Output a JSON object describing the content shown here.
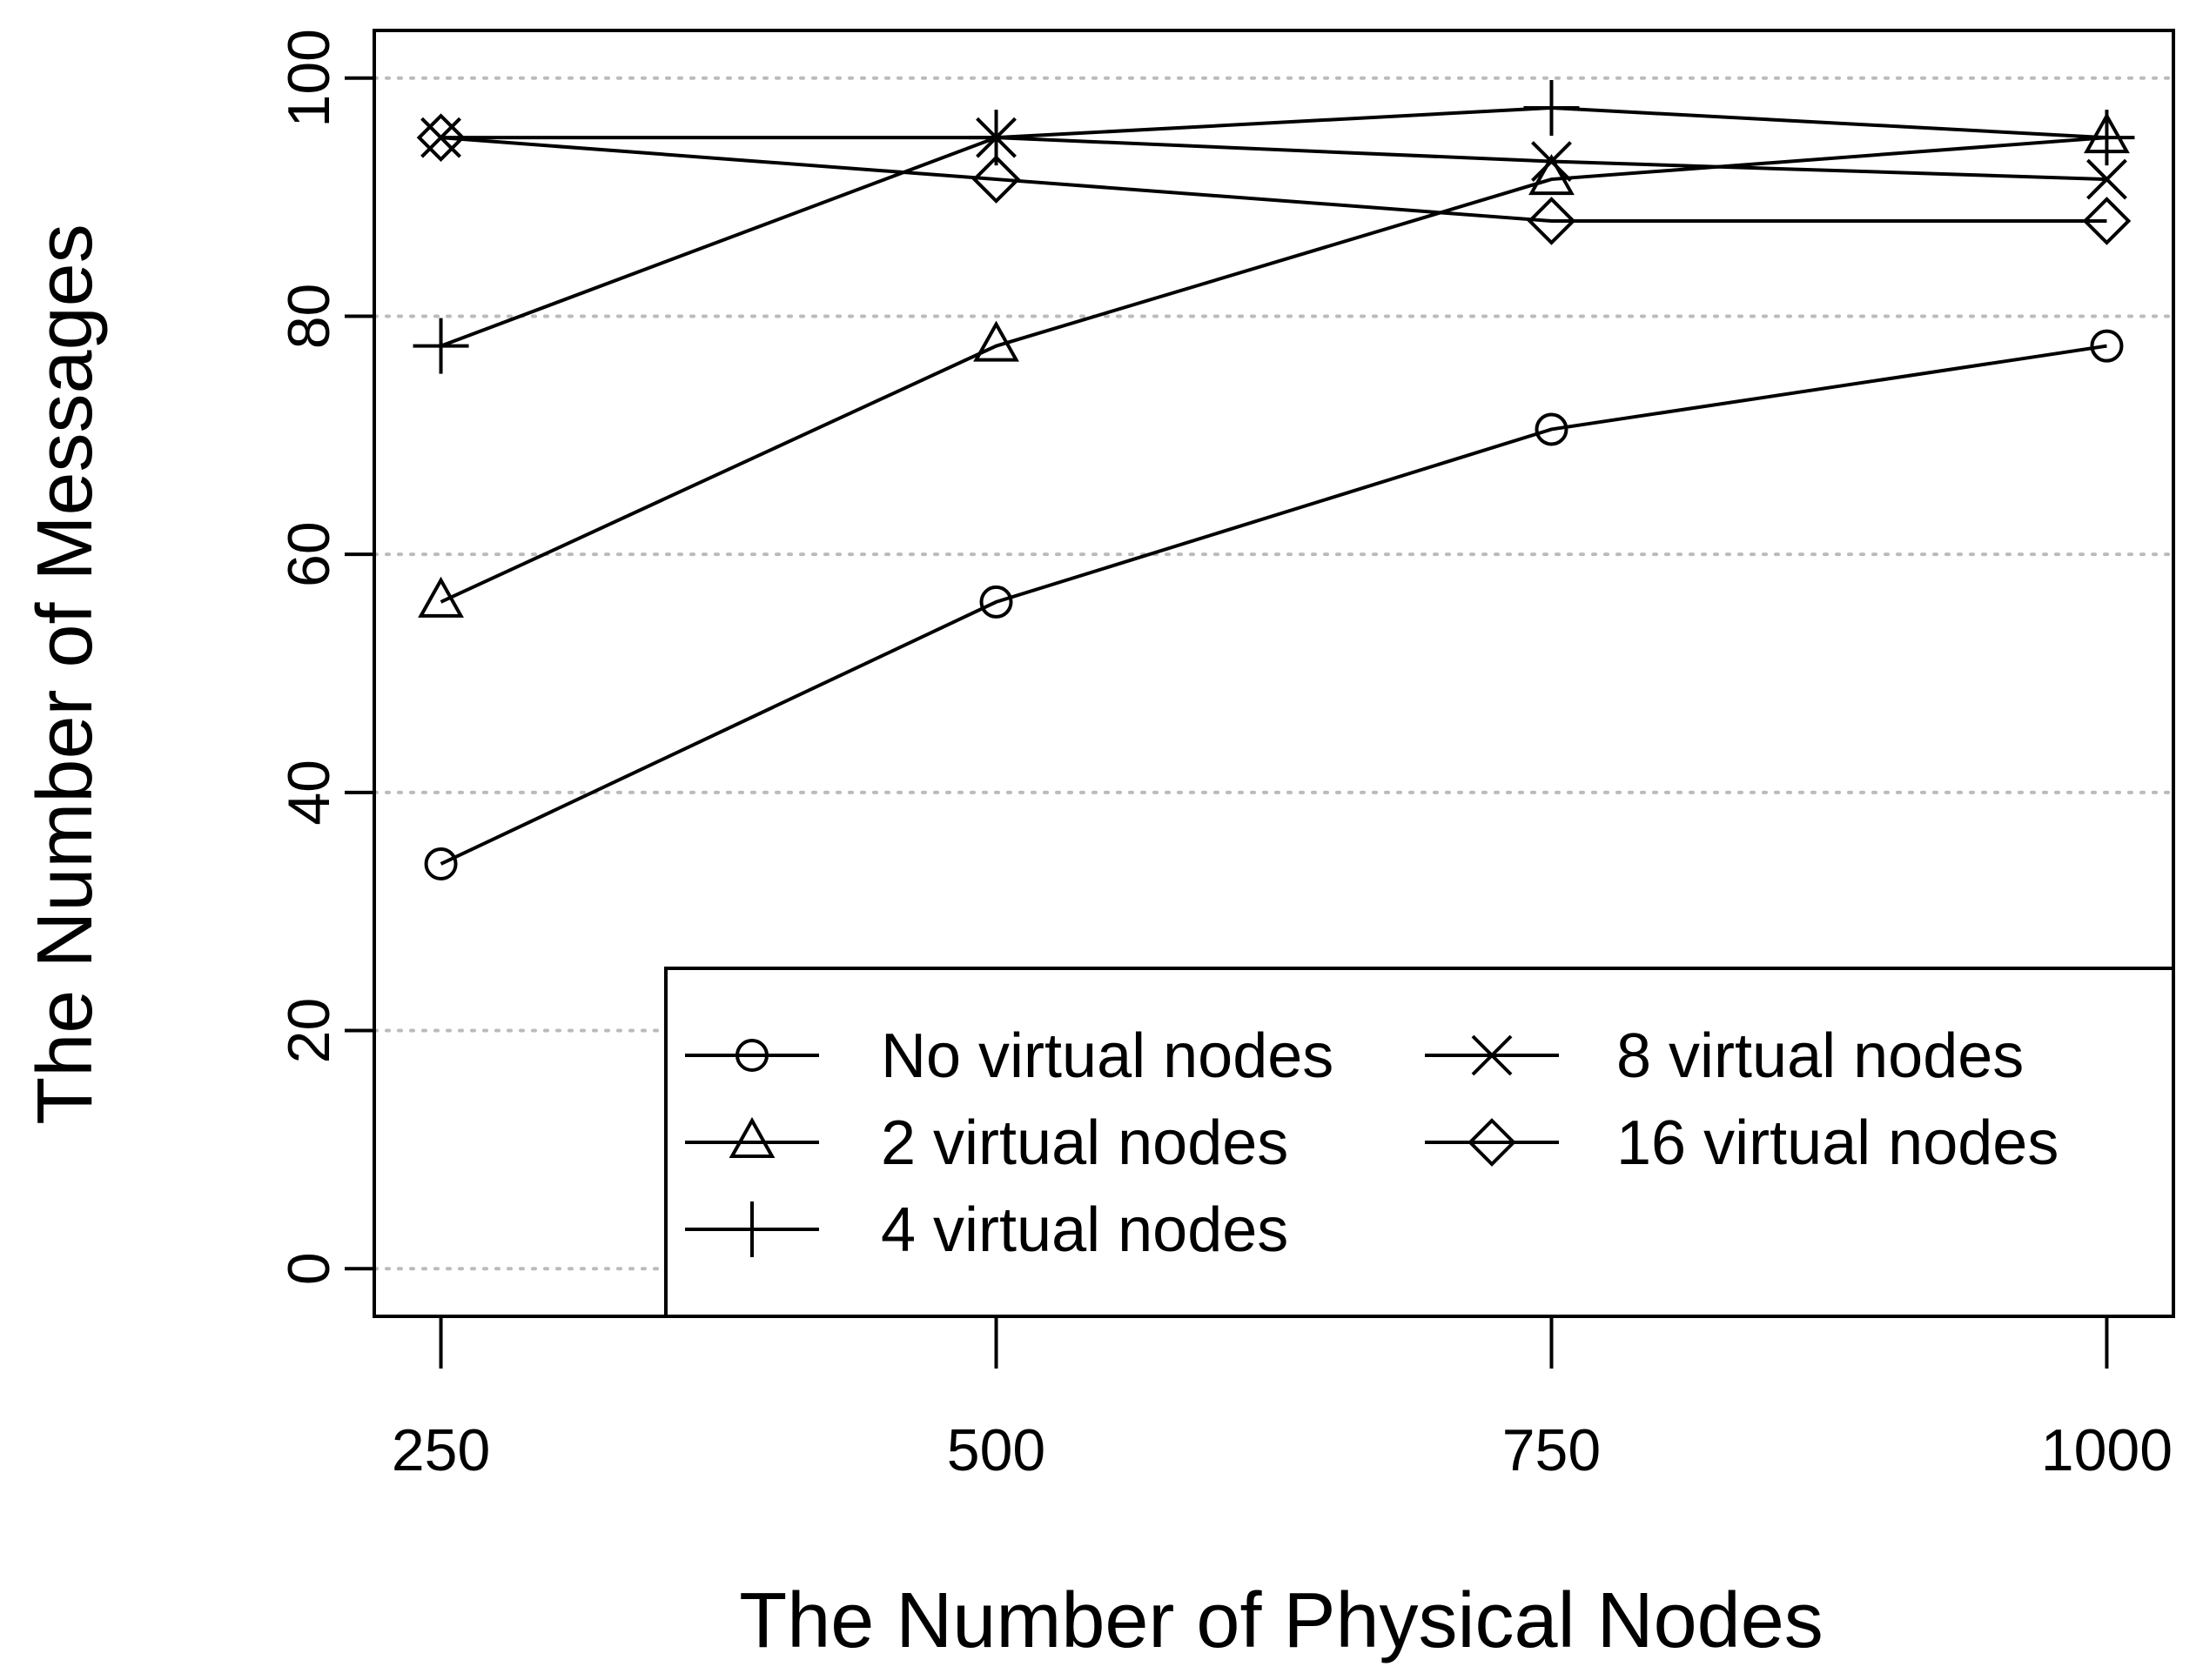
{
  "chart_data": {
    "type": "line",
    "title": "",
    "xlabel": "The Number of Physical Nodes",
    "ylabel": "The Number of Messages",
    "x": [
      250,
      500,
      750,
      1000
    ],
    "x_tick_labels": [
      "250",
      "500",
      "750",
      "1000"
    ],
    "y_ticks": [
      0,
      20,
      40,
      60,
      80,
      100
    ],
    "y_tick_labels": [
      "0",
      "20",
      "40",
      "60",
      "80",
      "100"
    ],
    "xlim": [
      220,
      1030
    ],
    "ylim": [
      -4,
      104
    ],
    "grid": "horizontal dotted",
    "legend_position": "bottom-right",
    "series": [
      {
        "name": "No virtual nodes",
        "marker": "circle",
        "values": [
          34,
          56,
          70.5,
          77.5
        ]
      },
      {
        "name": "2 virtual nodes",
        "marker": "triangle",
        "values": [
          56,
          77.5,
          91.5,
          95
        ]
      },
      {
        "name": "4 virtual nodes",
        "marker": "plus",
        "values": [
          77.5,
          95,
          97.5,
          95
        ]
      },
      {
        "name": "8 virtual nodes",
        "marker": "cross",
        "values": [
          95,
          95,
          93,
          91.5
        ]
      },
      {
        "name": "16 virtual nodes",
        "marker": "diamond",
        "values": [
          95,
          91.5,
          88,
          88
        ]
      }
    ]
  }
}
